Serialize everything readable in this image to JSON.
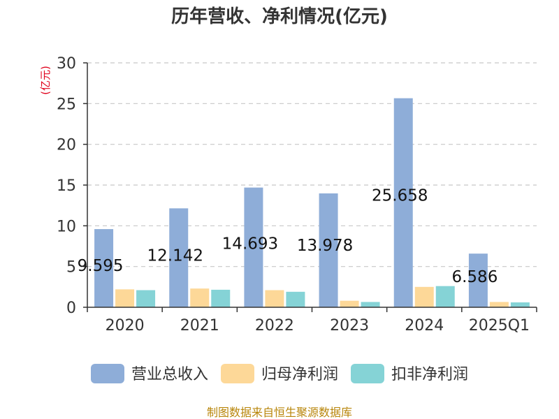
{
  "title": "历年营收、净利情况(亿元)",
  "source": "制图数据来自恒生聚源数据库",
  "colors": {
    "revenue": "#8eadd8",
    "net_profit": "#fdd898",
    "deducted_profit": "#85d3d6"
  },
  "chart_data": {
    "type": "bar",
    "title": "历年营收、净利情况(亿元)",
    "ylabel": "(亿元)",
    "xlabel": "",
    "categories": [
      "2020",
      "2021",
      "2022",
      "2023",
      "2024",
      "2025Q1"
    ],
    "ylim": [
      0,
      30
    ],
    "yticks": [
      0,
      5,
      10,
      15,
      20,
      25,
      30
    ],
    "grid": true,
    "legend_position": "bottom",
    "series": [
      {
        "name": "营业总收入",
        "values": [
          9.595,
          12.142,
          14.693,
          13.978,
          25.658,
          6.586
        ],
        "data_labels": [
          "9.595",
          "12.142",
          "14.693",
          "13.978",
          "25.658",
          "6.586"
        ]
      },
      {
        "name": "归母净利润",
        "values": [
          2.2,
          2.3,
          2.1,
          0.8,
          2.5,
          0.65
        ]
      },
      {
        "name": "扣非净利润",
        "values": [
          2.1,
          2.15,
          1.9,
          0.65,
          2.6,
          0.6
        ]
      }
    ]
  }
}
